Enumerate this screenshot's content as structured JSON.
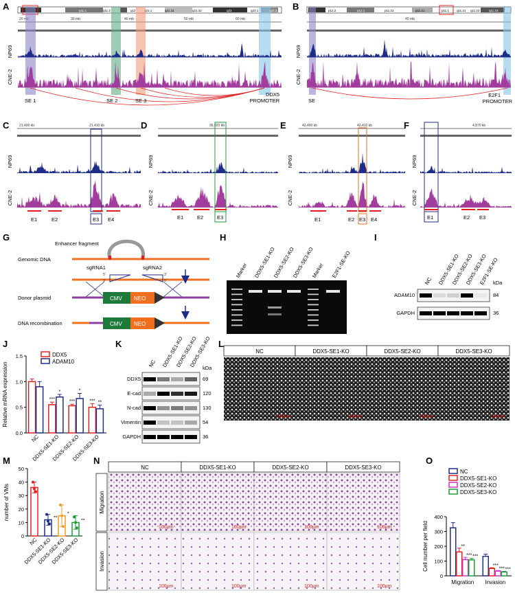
{
  "colors": {
    "navy": "#1f2d8a",
    "magenta": "#a23d9e",
    "red": "#e02020",
    "blue_band": "#86c4ea",
    "purple_band": "#8e86c8",
    "green_band": "#5daa84",
    "orange_band": "#f29a78",
    "orange": "#f59a23",
    "green": "#1e9a3a",
    "purple": "#cc33cc",
    "micro_purple": "#8a3fa0"
  },
  "panel_labels": [
    "A",
    "B",
    "C",
    "D",
    "E",
    "F",
    "G",
    "H",
    "I",
    "J",
    "K",
    "L",
    "M",
    "N",
    "O"
  ],
  "tracks": {
    "top": "NP69",
    "bottom": "CNE-2"
  },
  "panel_a": {
    "bands": [
      "p11.2",
      "p11.1",
      "q11.2",
      "q12",
      "q21.1",
      "q21.31",
      "q21.32",
      "q22",
      "q23.1",
      "q23.3"
    ],
    "ruler": [
      "20 mb",
      "30 mb",
      "40 mb",
      "50 mb",
      "60 mb"
    ],
    "regions": [
      "SE 1",
      "SE 2",
      "SE 3"
    ],
    "promoter": [
      "DDX5",
      "PROMOTER"
    ]
  },
  "panel_b": {
    "bands": [
      "p12.2",
      "p12.1",
      "p11.23",
      "p11.21",
      "p11.1",
      "q11.21",
      "q11.22",
      "q11.23"
    ],
    "ruler": [
      "40 mb"
    ],
    "regions": [
      "SE"
    ],
    "promoter": [
      "E2F1",
      "PROMOTER"
    ]
  },
  "zoom_panels": {
    "c": {
      "ruler": [
        "21,400 kb",
        "21,410 kb"
      ],
      "elements": [
        "E1",
        "E2",
        "E3",
        "E4"
      ]
    },
    "d": {
      "ruler": [
        "36,920 kb"
      ],
      "elements": [
        "E1",
        "E2",
        "E3"
      ]
    },
    "e": {
      "ruler": [
        "42,400 kb",
        "42,410 kb"
      ],
      "elements": [
        "E1",
        "E2",
        "E3",
        "E4"
      ]
    },
    "f": {
      "ruler": [
        "4,870 kb"
      ],
      "elements": [
        "E1",
        "E2",
        "E3"
      ]
    }
  },
  "panel_g": {
    "enhancer_fragment": "Enhancer fragment",
    "genomic_dna": "Genomic DNA",
    "sgrna1": "sgRNA1",
    "sgrna2": "sgRNA2",
    "donor_plasmid": "Donor plasmid",
    "dna_recombination": "DNA recombination",
    "cmv": "CMV",
    "neo": "NEO",
    "end5": "5'",
    "end3": "3'"
  },
  "panel_h": {
    "lanes": [
      "Marker",
      "DDX5-SE1-KO",
      "DDX5-SE2-KO",
      "DDX5-SE3-KO",
      "Marker",
      "E2F1-SE-KO"
    ]
  },
  "panel_i": {
    "lanes": [
      "NC",
      "DDX5-SE1-KO",
      "DDX5-SE2-KO",
      "DDX5-SE3-KO",
      "E2F1-SE-KO"
    ],
    "kda": "kDa",
    "rows": [
      {
        "name": "ADAM10",
        "kda": "84"
      },
      {
        "name": "GAPDH",
        "kda": "36"
      }
    ]
  },
  "panel_k": {
    "lanes": [
      "NC",
      "DDX5-SE1-KO",
      "DDX5-SE2-KO",
      "DDX5-SE3-KO"
    ],
    "kda": "kDa",
    "rows": [
      {
        "name": "DDX5",
        "kda": "69"
      },
      {
        "name": "E-cad",
        "kda": "120"
      },
      {
        "name": "N-cad",
        "kda": "130"
      },
      {
        "name": "Vimentin",
        "kda": "54"
      },
      {
        "name": "GAPDH",
        "kda": "36"
      }
    ]
  },
  "panel_l": {
    "headers": [
      "NC",
      "DDX5-SE1-KO",
      "DDX5-SE2-KO",
      "DDX5-SE3-KO"
    ],
    "scale": "100μm"
  },
  "panel_n": {
    "headers": [
      "NC",
      "DDX5-SE1-KO",
      "DDX5-SE2-KO",
      "DDX5-SE3-KO"
    ],
    "rows": [
      "Migration",
      "Invasion"
    ],
    "scale": "100μm"
  },
  "chart_data": [
    {
      "id": "J",
      "type": "bar",
      "ylabel": "Relative mRNA expression",
      "ylim": [
        0,
        1.5
      ],
      "yticks": [
        "0.0",
        "0.5",
        "1.0",
        "1.5"
      ],
      "categories": [
        "NC",
        "DDX5-SE1-KO",
        "DDX5-SE2-KO",
        "DDX5-SE3-KO"
      ],
      "series": [
        {
          "name": "DDX5",
          "values": [
            1.0,
            0.55,
            0.53,
            0.5
          ],
          "errors": [
            0.05,
            0.05,
            0.03,
            0.07
          ],
          "sig": [
            "",
            "***",
            "***",
            "***"
          ]
        },
        {
          "name": "ADAM10",
          "values": [
            0.9,
            0.7,
            0.67,
            0.47
          ],
          "errors": [
            0.1,
            0.05,
            0.1,
            0.07
          ],
          "sig": [
            "",
            "*",
            "*",
            "**"
          ]
        }
      ]
    },
    {
      "id": "M",
      "type": "bar",
      "ylabel": "number of VMs",
      "ylim": [
        0,
        50
      ],
      "yticks": [
        "0",
        "10",
        "20",
        "30",
        "40",
        "50"
      ],
      "categories": [
        "NC",
        "DDX5-SE1-KO",
        "DDX5-SE2-KO",
        "DDX5-SE3-KO"
      ],
      "values": [
        36,
        12,
        15,
        10
      ],
      "errors": [
        4,
        4,
        8,
        5
      ],
      "points": [
        [
          40,
          35,
          33
        ],
        [
          16,
          11,
          9
        ],
        [
          23,
          15,
          7
        ],
        [
          14,
          10,
          6
        ]
      ],
      "sig": [
        "",
        "**",
        "*",
        "**"
      ]
    },
    {
      "id": "O",
      "type": "bar",
      "ylabel": "Cell number per field",
      "ylim": [
        0,
        400
      ],
      "yticks": [
        "0",
        "100",
        "200",
        "300",
        "400"
      ],
      "categories": [
        "Migration",
        "Invasion"
      ],
      "series": [
        {
          "name": "NC",
          "values": [
            325,
            132
          ],
          "errors": [
            35,
            15
          ],
          "sig": [
            "",
            ""
          ]
        },
        {
          "name": "DDX5-SE1-KO",
          "values": [
            162,
            50
          ],
          "errors": [
            25,
            5
          ],
          "sig": [
            "**",
            "***"
          ]
        },
        {
          "name": "DDX5-SE2-KO",
          "values": [
            110,
            32
          ],
          "errors": [
            15,
            4
          ],
          "sig": [
            "***",
            "***"
          ]
        },
        {
          "name": "DDX5-SE3-KO",
          "values": [
            108,
            26
          ],
          "errors": [
            10,
            4
          ],
          "sig": [
            "***",
            "***"
          ]
        }
      ]
    }
  ]
}
